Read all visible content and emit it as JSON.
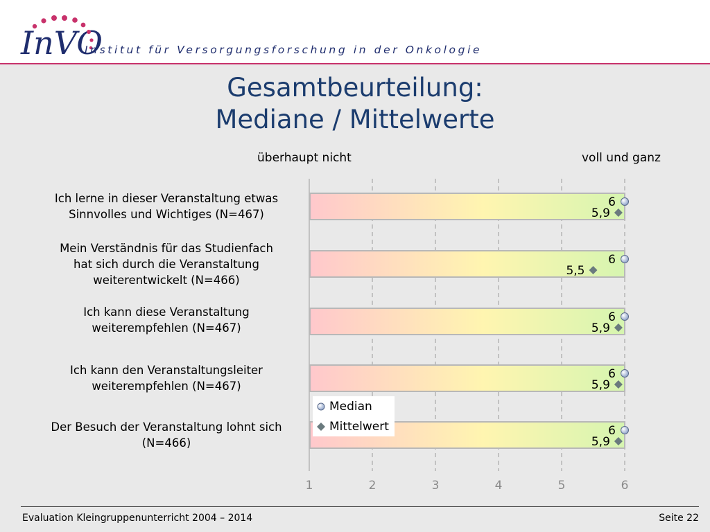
{
  "header": {
    "logo_text": "InVO",
    "tagline": "Institut für Versorgungsforschung in der Onkologie"
  },
  "title": {
    "line1": "Gesamtbeurteilung:",
    "line2": "Mediane / Mittelwerte"
  },
  "scale": {
    "left_label": "überhaupt nicht",
    "right_label": "voll und ganz"
  },
  "legend": {
    "median": "Median",
    "mean": "Mittelwert"
  },
  "colors": {
    "title": "#1b3c6e",
    "header_line": "#c8326b",
    "bar_start": "#ffc8cc",
    "bar_mid": "#fff5b0",
    "bar_end": "#d6f5b0",
    "median_marker": "#8aa0c8",
    "mean_marker": "#6a7a7e"
  },
  "chart_data": {
    "type": "bar",
    "xlim": [
      1,
      6
    ],
    "xticks": [
      "1",
      "2",
      "3",
      "4",
      "5",
      "6"
    ],
    "grid": true,
    "legend_position": "bottom-center",
    "categories": [
      {
        "label_lines": [
          "Ich lerne in dieser Veranstaltung etwas",
          "Sinnvolles und Wichtiges (N=467)"
        ],
        "median": 6,
        "median_label": "6",
        "mean": 5.9,
        "mean_label": "5,9"
      },
      {
        "label_lines": [
          "Mein Verständnis für das Studienfach",
          "hat sich durch die Veranstaltung",
          "weiterentwickelt (N=466)"
        ],
        "median": 6,
        "median_label": "6",
        "mean": 5.5,
        "mean_label": "5,5"
      },
      {
        "label_lines": [
          "Ich kann diese Veranstaltung",
          "weiterempfehlen (N=467)"
        ],
        "median": 6,
        "median_label": "6",
        "mean": 5.9,
        "mean_label": "5,9"
      },
      {
        "label_lines": [
          "Ich kann den Veranstaltungsleiter",
          "weiterempfehlen (N=467)"
        ],
        "median": 6,
        "median_label": "6",
        "mean": 5.9,
        "mean_label": "5,9"
      },
      {
        "label_lines": [
          "Der Besuch der Veranstaltung lohnt sich",
          "(N=466)"
        ],
        "median": 6,
        "median_label": "6",
        "mean": 5.9,
        "mean_label": "5,9"
      }
    ]
  },
  "footer": {
    "left": "Evaluation Kleingruppenunterricht 2004 – 2014",
    "right": "Seite 22"
  }
}
